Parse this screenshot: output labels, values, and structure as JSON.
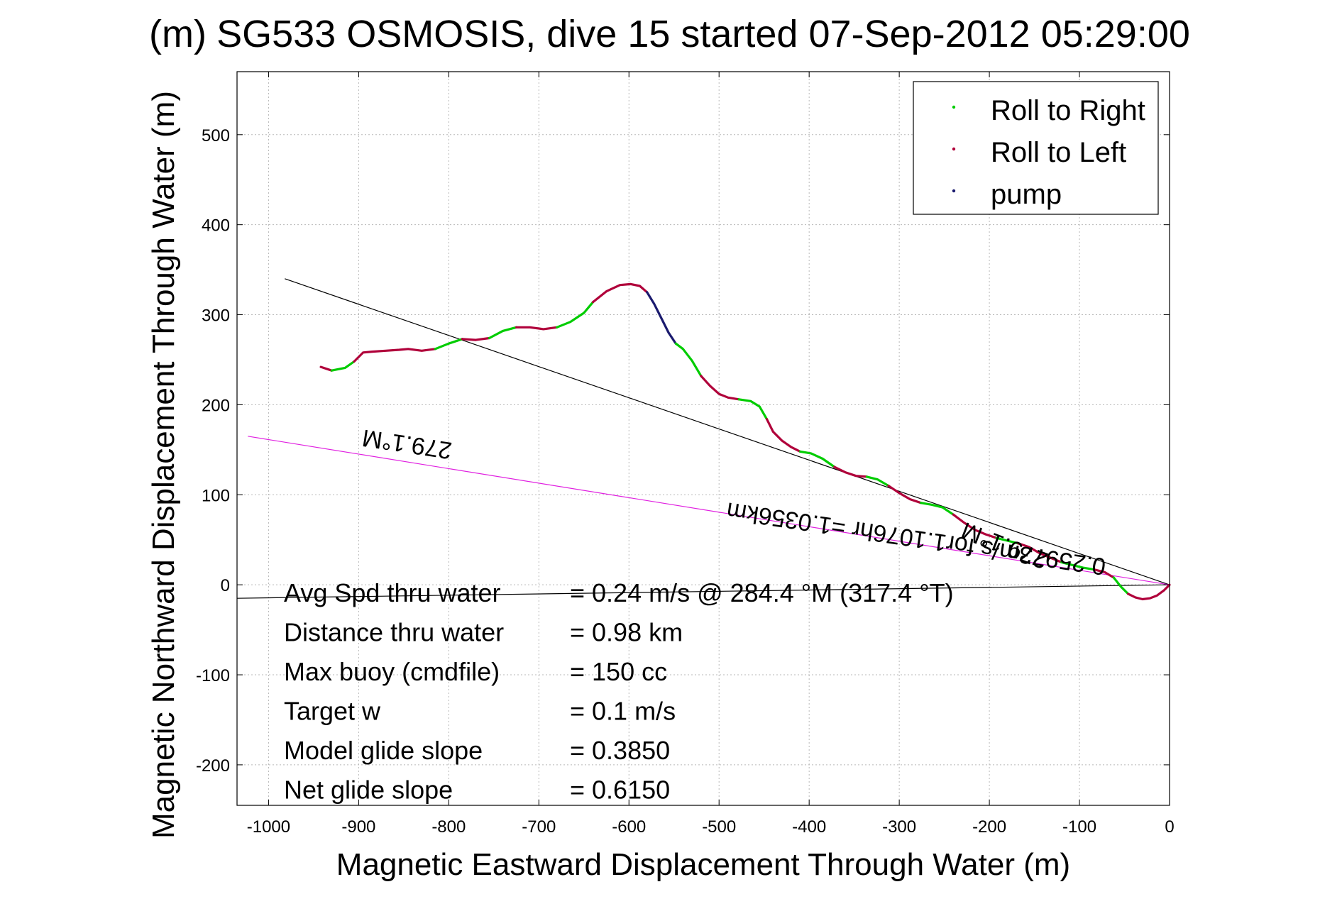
{
  "chart_data": {
    "type": "line",
    "title": "SG533 OSMOSIS, dive 15 started 07-Sep-2012 05:29:00",
    "title_overlap": "(m)",
    "xlabel": "Magnetic Eastward Displacement Through Water (m)",
    "ylabel": "Magnetic Northward Displacement Through Water (m)",
    "xlim": [
      -1035,
      0
    ],
    "ylim": [
      -245,
      570
    ],
    "xticks": [
      -1000,
      -900,
      -800,
      -700,
      -600,
      -500,
      -400,
      -300,
      -200,
      -100,
      0
    ],
    "yticks": [
      -200,
      -100,
      0,
      100,
      200,
      300,
      400,
      500
    ],
    "grid": true,
    "legend_position": "top-right",
    "colors": {
      "roll_right": "#00cc00",
      "roll_left": "#b0003a",
      "pump": "#1a1a6e",
      "reference_line": "#000000",
      "heading_line": "#e020e0"
    },
    "series": [
      {
        "name": "Roll to Right",
        "color": "#00cc00"
      },
      {
        "name": "Roll to Left",
        "color": "#b0003a"
      },
      {
        "name": "pump",
        "color": "#1a1a6e"
      }
    ],
    "track": {
      "x": [
        -942,
        -930,
        -915,
        -905,
        -895,
        -885,
        -870,
        -855,
        -845,
        -830,
        -815,
        -800,
        -785,
        -770,
        -755,
        -740,
        -725,
        -710,
        -695,
        -680,
        -665,
        -650,
        -640,
        -625,
        -610,
        -598,
        -588,
        -580,
        -572,
        -564,
        -556,
        -548,
        -540,
        -530,
        -520,
        -510,
        -500,
        -490,
        -478,
        -465,
        -455,
        -447,
        -440,
        -430,
        -420,
        -410,
        -398,
        -385,
        -372,
        -360,
        -348,
        -336,
        -324,
        -312,
        -300,
        -288,
        -276,
        -264,
        -252,
        -240,
        -228,
        -216,
        -204,
        -192,
        -180,
        -168,
        -156,
        -144,
        -132,
        -120,
        -108,
        -96,
        -84,
        -72,
        -62,
        -54,
        -46,
        -38,
        -30,
        -22,
        -14,
        -6,
        0
      ],
      "y": [
        242,
        238,
        241,
        248,
        258,
        259,
        260,
        261,
        262,
        260,
        262,
        268,
        273,
        272,
        274,
        282,
        286,
        286,
        284,
        286,
        292,
        302,
        314,
        326,
        333,
        334,
        332,
        325,
        312,
        296,
        280,
        268,
        262,
        249,
        232,
        221,
        212,
        208,
        206,
        204,
        198,
        184,
        170,
        160,
        153,
        148,
        146,
        140,
        131,
        125,
        121,
        120,
        117,
        110,
        102,
        95,
        91,
        89,
        86,
        78,
        69,
        61,
        56,
        52,
        49,
        46,
        42,
        35,
        30,
        25,
        22,
        19,
        17,
        14,
        8,
        -2,
        -10,
        -14,
        -16,
        -15,
        -12,
        -6,
        0
      ],
      "segments": [
        {
          "mode": "roll_left",
          "from": 0,
          "to": 1
        },
        {
          "mode": "roll_right",
          "from": 1,
          "to": 3
        },
        {
          "mode": "roll_left",
          "from": 3,
          "to": 10
        },
        {
          "mode": "roll_right",
          "from": 10,
          "to": 12
        },
        {
          "mode": "roll_left",
          "from": 12,
          "to": 14
        },
        {
          "mode": "roll_right",
          "from": 14,
          "to": 16
        },
        {
          "mode": "roll_left",
          "from": 16,
          "to": 19
        },
        {
          "mode": "roll_right",
          "from": 19,
          "to": 22
        },
        {
          "mode": "roll_left",
          "from": 22,
          "to": 27
        },
        {
          "mode": "pump",
          "from": 27,
          "to": 31
        },
        {
          "mode": "roll_right",
          "from": 31,
          "to": 34
        },
        {
          "mode": "roll_left",
          "from": 34,
          "to": 38
        },
        {
          "mode": "roll_right",
          "from": 38,
          "to": 41
        },
        {
          "mode": "roll_left",
          "from": 41,
          "to": 45
        },
        {
          "mode": "roll_right",
          "from": 45,
          "to": 48
        },
        {
          "mode": "roll_left",
          "from": 48,
          "to": 51
        },
        {
          "mode": "roll_right",
          "from": 51,
          "to": 53
        },
        {
          "mode": "roll_left",
          "from": 53,
          "to": 56
        },
        {
          "mode": "roll_right",
          "from": 56,
          "to": 59
        },
        {
          "mode": "roll_left",
          "from": 59,
          "to": 63
        },
        {
          "mode": "roll_right",
          "from": 63,
          "to": 65
        },
        {
          "mode": "roll_left",
          "from": 65,
          "to": 69
        },
        {
          "mode": "roll_right",
          "from": 69,
          "to": 72
        },
        {
          "mode": "roll_left",
          "from": 72,
          "to": 74
        },
        {
          "mode": "roll_right",
          "from": 74,
          "to": 76
        },
        {
          "mode": "roll_left",
          "from": 76,
          "to": 82
        }
      ]
    },
    "reference_lines": [
      {
        "name": "track_fit",
        "color": "#000000",
        "x": [
          -982,
          0
        ],
        "y": [
          340,
          0
        ]
      },
      {
        "name": "heading_279",
        "color": "#e020e0",
        "x": [
          -1023,
          0
        ],
        "y": [
          165,
          0
        ]
      },
      {
        "name": "baseline",
        "color": "#000000",
        "x": [
          -1035,
          0
        ],
        "y": [
          -15,
          0
        ]
      }
    ],
    "rotated_labels": [
      {
        "text": "279.1°M",
        "x": -845,
        "y": 165,
        "angle": 188.5
      },
      {
        "text": "0.25973m/s for1.1076hr =1.0356km",
        "x": -280,
        "y": 60,
        "angle": 188.5
      },
      {
        "text": "279.1°M",
        "x": -180,
        "y": 52,
        "angle": 201
      }
    ],
    "annotations": [
      {
        "label": "Avg Spd thru water",
        "value": "=  0.24 m/s @ 284.4 °M (317.4 °T)"
      },
      {
        "label": "Distance thru water",
        "value": "=  0.98 km"
      },
      {
        "label": "Max buoy (cmdfile)",
        "value": "= 150 cc"
      },
      {
        "label": "Target w",
        "value": "= 0.1 m/s"
      },
      {
        "label": "Model glide slope",
        "value": "= 0.3850"
      },
      {
        "label": "Net glide slope",
        "value": "= 0.6150"
      }
    ]
  }
}
